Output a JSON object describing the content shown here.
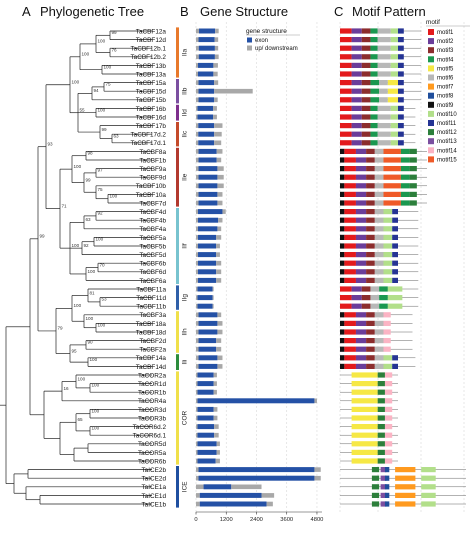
{
  "panels": {
    "a": {
      "letter": "A",
      "title": "Phylogenetic Tree"
    },
    "b": {
      "letter": "B",
      "title": "Gene Structure"
    },
    "c": {
      "letter": "C",
      "title": "Motif Pattern"
    }
  },
  "genes": [
    "TaCBF12a",
    "TaCBF12d",
    "TaCBF12b.1",
    "TaCBF12b.2",
    "TaCBF13b",
    "TaCBF13a",
    "TaCBF15a",
    "TaCBF15d",
    "TaCBF15b",
    "TaCBF16b",
    "TaCBF16d",
    "TaCBF17b",
    "TaCBF17d.2",
    "TaCBF17d.1",
    "TaCBF8a",
    "TaCBF1b",
    "TaCBF9a",
    "TaCBF9d",
    "TaCBF10b",
    "TaCBF10a",
    "TaCBF7d",
    "TaCBF4d",
    "TaCBF4b",
    "TaCBF4a",
    "TaCBF5a",
    "TaCBF5b",
    "TaCBF5d",
    "TaCBF6b",
    "TaCBF6d",
    "TaCBF6a",
    "TaCBF11a",
    "TaCBF11d",
    "TaCBF11b",
    "TaCBF3a",
    "TaCBF18a",
    "TaCBF18d",
    "TaCBF2d",
    "TaCBF2a",
    "TaCBF14a",
    "TaCBF14d",
    "TaCOR2a",
    "TaCOR1d",
    "TaCOR1b",
    "TaCOR4a",
    "TaCOR3d",
    "TaCOR3b",
    "TaCOR6d.2",
    "TaCOR6d.1",
    "TaCOR5d",
    "TaCOR5a",
    "TaCOR6b",
    "TaICE2b",
    "TaICE2d",
    "TaICE1a",
    "TaICE1d",
    "TaICE1b"
  ],
  "groups": [
    {
      "label": "IIa",
      "start": 0,
      "end": 5,
      "color": "#e8792b"
    },
    {
      "label": "IIb",
      "start": 6,
      "end": 8,
      "color": "#7b4fa0"
    },
    {
      "label": "IId",
      "start": 9,
      "end": 10,
      "color": "#7e2f8c"
    },
    {
      "label": "IIc",
      "start": 11,
      "end": 13,
      "color": "#c44a2a"
    },
    {
      "label": "IIe",
      "start": 14,
      "end": 20,
      "color": "#b2392e"
    },
    {
      "label": "IIf",
      "start": 21,
      "end": 29,
      "color": "#78c3cf"
    },
    {
      "label": "IIg",
      "start": 30,
      "end": 32,
      "color": "#2f5fa8"
    },
    {
      "label": "IIh",
      "start": 33,
      "end": 37,
      "color": "#f0e04a"
    },
    {
      "label": "IIi",
      "start": 38,
      "end": 39,
      "color": "#2c8c3c"
    },
    {
      "label": "COR",
      "start": 40,
      "end": 50,
      "color": "#f0e04a"
    },
    {
      "label": "ICE",
      "start": 51,
      "end": 55,
      "color": "#1f4fa0"
    }
  ],
  "bootstrap": [
    "99",
    "76",
    "100",
    "100",
    "100",
    "75",
    "94",
    "100",
    "63",
    "99",
    "55",
    "100",
    "98",
    "97",
    "100",
    "75",
    "99",
    "100",
    "92",
    "63",
    "100",
    "92",
    "70",
    "100",
    "100",
    "71",
    "93",
    "53",
    "81",
    "100",
    "100",
    "100",
    "90",
    "100",
    "95",
    "79",
    "99",
    "100",
    "100",
    "16",
    "100",
    "100",
    "65"
  ],
  "gene_structure": {
    "legend_title": "gene structure",
    "legend": [
      {
        "label": "exon",
        "color": "#2451a6"
      },
      {
        "label": "up/ downstream",
        "color": "#a8a8a8"
      }
    ],
    "axis_ticks": [
      0,
      1200,
      2400,
      3600,
      4800
    ],
    "xlim": [
      0,
      5000
    ],
    "rows": [
      {
        "gene": "TaCBF12a",
        "up": [
          0,
          120
        ],
        "exon": [
          120,
          760
        ],
        "down": [
          760,
          900
        ]
      },
      {
        "gene": "TaCBF12d",
        "up": [
          0,
          100
        ],
        "exon": [
          100,
          740
        ],
        "down": [
          740,
          880
        ]
      },
      {
        "gene": "TaCBF12b.1",
        "up": [
          0,
          110
        ],
        "exon": [
          110,
          750
        ],
        "down": [
          750,
          880
        ]
      },
      {
        "gene": "TaCBF12b.2",
        "up": [
          0,
          110
        ],
        "exon": [
          110,
          750
        ],
        "down": [
          750,
          900
        ]
      },
      {
        "gene": "TaCBF13b",
        "up": [
          0,
          80
        ],
        "exon": [
          80,
          690
        ],
        "down": [
          690,
          870
        ]
      },
      {
        "gene": "TaCBF13a",
        "up": [
          0,
          80
        ],
        "exon": [
          80,
          690
        ],
        "down": [
          690,
          860
        ]
      },
      {
        "gene": "TaCBF15a",
        "up": [
          0,
          100
        ],
        "exon": [
          100,
          720
        ],
        "down": [
          720,
          880
        ]
      },
      {
        "gene": "TaCBF15d",
        "up": [
          0,
          100
        ],
        "exon": [
          100,
          720
        ],
        "down": [
          720,
          2250
        ]
      },
      {
        "gene": "TaCBF15b",
        "up": [
          0,
          100
        ],
        "exon": [
          100,
          720
        ],
        "down": [
          720,
          860
        ]
      },
      {
        "gene": "TaCBF16b",
        "up": [
          0,
          60
        ],
        "exon": [
          60,
          680
        ],
        "down": [
          680,
          830
        ]
      },
      {
        "gene": "TaCBF16d",
        "up": [
          0,
          60
        ],
        "exon": [
          60,
          680
        ],
        "down": [
          680,
          830
        ]
      },
      {
        "gene": "TaCBF17b",
        "up": [
          0,
          90
        ],
        "exon": [
          90,
          720
        ],
        "down": [
          720,
          1050
        ]
      },
      {
        "gene": "TaCBF17d.2",
        "up": [
          0,
          90
        ],
        "exon": [
          90,
          720
        ],
        "down": [
          720,
          1020
        ]
      },
      {
        "gene": "TaCBF17d.1",
        "up": [
          0,
          90
        ],
        "exon": [
          90,
          720
        ],
        "down": [
          720,
          1000
        ]
      },
      {
        "gene": "TaCBF8a",
        "up": [
          0,
          100
        ],
        "exon": [
          100,
          820
        ],
        "down": [
          820,
          1050
        ]
      },
      {
        "gene": "TaCBF1b",
        "up": [
          0,
          100
        ],
        "exon": [
          100,
          820
        ],
        "down": [
          820,
          1000
        ]
      },
      {
        "gene": "TaCBF9a",
        "up": [
          0,
          100
        ],
        "exon": [
          100,
          850
        ],
        "down": [
          850,
          1100
        ]
      },
      {
        "gene": "TaCBF9d",
        "up": [
          0,
          100
        ],
        "exon": [
          100,
          850
        ],
        "down": [
          850,
          1100
        ]
      },
      {
        "gene": "TaCBF10b",
        "up": [
          0,
          100
        ],
        "exon": [
          100,
          850
        ],
        "down": [
          850,
          1100
        ]
      },
      {
        "gene": "TaCBF10a",
        "up": [
          0,
          100
        ],
        "exon": [
          100,
          850
        ],
        "down": [
          850,
          1050
        ]
      },
      {
        "gene": "TaCBF7d",
        "up": [
          0,
          100
        ],
        "exon": [
          100,
          850
        ],
        "down": [
          850,
          1050
        ]
      },
      {
        "gene": "TaCBF4d",
        "up": [
          0,
          80
        ],
        "exon": [
          80,
          1050
        ],
        "down": [
          1050,
          1180
        ]
      },
      {
        "gene": "TaCBF4b",
        "up": [
          0,
          80
        ],
        "exon": [
          80,
          880
        ],
        "down": [
          880,
          1050
        ]
      },
      {
        "gene": "TaCBF4a",
        "up": [
          0,
          80
        ],
        "exon": [
          80,
          850
        ],
        "down": [
          850,
          1000
        ]
      },
      {
        "gene": "TaCBF5a",
        "up": [
          0,
          80
        ],
        "exon": [
          80,
          800
        ],
        "down": [
          800,
          1000
        ]
      },
      {
        "gene": "TaCBF5b",
        "up": [
          0,
          80
        ],
        "exon": [
          80,
          800
        ],
        "down": [
          800,
          950
        ]
      },
      {
        "gene": "TaCBF5d",
        "up": [
          0,
          80
        ],
        "exon": [
          80,
          800
        ],
        "down": [
          800,
          950
        ]
      },
      {
        "gene": "TaCBF6b",
        "up": [
          0,
          80
        ],
        "exon": [
          80,
          800
        ],
        "down": [
          800,
          1000
        ]
      },
      {
        "gene": "TaCBF6d",
        "up": [
          0,
          80
        ],
        "exon": [
          80,
          800
        ],
        "down": [
          800,
          1000
        ]
      },
      {
        "gene": "TaCBF6a",
        "up": [
          0,
          80
        ],
        "exon": [
          80,
          800
        ],
        "down": [
          800,
          1000
        ]
      },
      {
        "gene": "TaCBF11a",
        "up": [
          0,
          60
        ],
        "exon": [
          60,
          660
        ],
        "down": [
          660,
          700
        ]
      },
      {
        "gene": "TaCBF11d",
        "up": [
          0,
          60
        ],
        "exon": [
          60,
          660
        ],
        "down": [
          660,
          700
        ]
      },
      {
        "gene": "TaCBF11b",
        "up": [
          0,
          60
        ],
        "exon": [
          60,
          660
        ],
        "down": [
          660,
          700
        ]
      },
      {
        "gene": "TaCBF3a",
        "up": [
          0,
          100
        ],
        "exon": [
          100,
          850
        ],
        "down": [
          850,
          1000
        ]
      },
      {
        "gene": "TaCBF18a",
        "up": [
          0,
          100
        ],
        "exon": [
          100,
          850
        ],
        "down": [
          850,
          1050
        ]
      },
      {
        "gene": "TaCBF18d",
        "up": [
          0,
          100
        ],
        "exon": [
          100,
          850
        ],
        "down": [
          850,
          1050
        ]
      },
      {
        "gene": "TaCBF2d",
        "up": [
          0,
          100
        ],
        "exon": [
          100,
          800
        ],
        "down": [
          800,
          1000
        ]
      },
      {
        "gene": "TaCBF2a",
        "up": [
          0,
          100
        ],
        "exon": [
          100,
          800
        ],
        "down": [
          800,
          1000
        ]
      },
      {
        "gene": "TaCBF14a",
        "up": [
          0,
          100
        ],
        "exon": [
          100,
          850
        ],
        "down": [
          850,
          1050
        ]
      },
      {
        "gene": "TaCBF14d",
        "up": [
          0,
          100
        ],
        "exon": [
          100,
          850
        ],
        "down": [
          850,
          1050
        ]
      },
      {
        "gene": "TaCOR2a",
        "up": [
          0,
          60
        ],
        "exon": [
          60,
          700
        ],
        "down": [
          700,
          830
        ]
      },
      {
        "gene": "TaCOR1d",
        "up": [
          0,
          60
        ],
        "exon": [
          60,
          700
        ],
        "down": [
          700,
          830
        ]
      },
      {
        "gene": "TaCOR1b",
        "up": [
          0,
          60
        ],
        "exon": [
          60,
          700
        ],
        "down": [
          700,
          830
        ]
      },
      {
        "gene": "TaCOR4a",
        "up": [
          0,
          60
        ],
        "exon": [
          60,
          4700
        ],
        "down": [
          4700,
          4800
        ]
      },
      {
        "gene": "TaCOR3d",
        "up": [
          0,
          60
        ],
        "exon": [
          60,
          700
        ],
        "down": [
          700,
          850
        ]
      },
      {
        "gene": "TaCOR3b",
        "up": [
          0,
          60
        ],
        "exon": [
          60,
          700
        ],
        "down": [
          700,
          850
        ]
      },
      {
        "gene": "TaCOR6d.2",
        "up": [
          0,
          60
        ],
        "exon": [
          60,
          720
        ],
        "down": [
          720,
          900
        ]
      },
      {
        "gene": "TaCOR6d.1",
        "up": [
          0,
          60
        ],
        "exon": [
          60,
          720
        ],
        "down": [
          720,
          900
        ]
      },
      {
        "gene": "TaCOR5d",
        "up": [
          0,
          60
        ],
        "exon": [
          60,
          820
        ],
        "down": [
          820,
          950
        ]
      },
      {
        "gene": "TaCOR5a",
        "up": [
          0,
          60
        ],
        "exon": [
          60,
          820
        ],
        "down": [
          820,
          950
        ]
      },
      {
        "gene": "TaCOR6b",
        "up": [
          0,
          60
        ],
        "exon": [
          60,
          780
        ],
        "down": [
          780,
          950
        ]
      },
      {
        "gene": "TaICE2b",
        "up": [
          0,
          100
        ],
        "exon": [
          100,
          4700
        ],
        "down": [
          4700,
          4950
        ]
      },
      {
        "gene": "TaICE2d",
        "up": [
          0,
          100
        ],
        "exon": [
          100,
          4700
        ],
        "down": [
          4700,
          4950
        ]
      },
      {
        "gene": "TaICE1a",
        "up": [
          0,
          300
        ],
        "exon": [
          300,
          1400
        ],
        "down": [
          1400,
          2600
        ]
      },
      {
        "gene": "TaICE1d",
        "up": [
          0,
          150
        ],
        "exon": [
          150,
          2600
        ],
        "down": [
          2600,
          3100
        ]
      },
      {
        "gene": "TaICE1b",
        "up": [
          0,
          150
        ],
        "exon": [
          150,
          2800
        ],
        "down": [
          2800,
          3050
        ]
      }
    ]
  },
  "motif_legend": {
    "title": "motif",
    "items": [
      {
        "label": "motif1",
        "color": "#e31a1c"
      },
      {
        "label": "motif2",
        "color": "#6a3d9a"
      },
      {
        "label": "motif3",
        "color": "#8c2d2d"
      },
      {
        "label": "motif4",
        "color": "#1a9850"
      },
      {
        "label": "motif5",
        "color": "#f6e845"
      },
      {
        "label": "motif6",
        "color": "#b8b8b8"
      },
      {
        "label": "motif7",
        "color": "#ff9a1f"
      },
      {
        "label": "motif8",
        "color": "#1f4e9c"
      },
      {
        "label": "motif9",
        "color": "#111111"
      },
      {
        "label": "motif10",
        "color": "#b2df8a"
      },
      {
        "label": "motif11",
        "color": "#253494"
      },
      {
        "label": "motif12",
        "color": "#2c7f3b"
      },
      {
        "label": "motif13",
        "color": "#7b4fa0"
      },
      {
        "label": "motif14",
        "color": "#fbb4c4"
      },
      {
        "label": "motif15",
        "color": "#ef5a28"
      }
    ]
  }
}
